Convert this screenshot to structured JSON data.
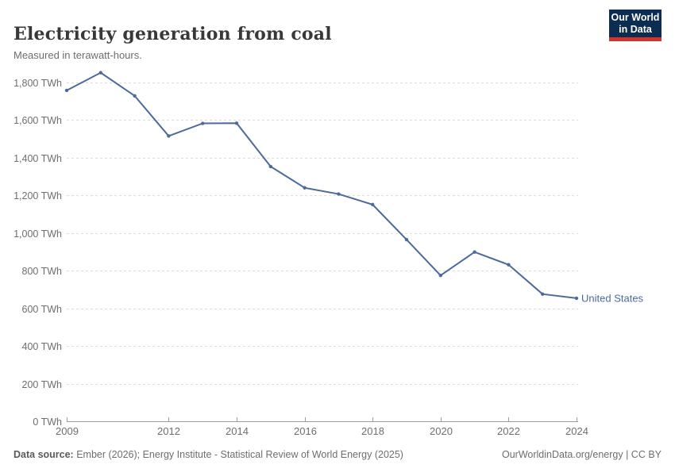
{
  "header": {
    "title": "Electricity generation from coal",
    "subtitle": "Measured in terawatt-hours."
  },
  "logo": {
    "line1": "Our World",
    "line2": "in Data",
    "bg_color": "#0a2d51",
    "bar_color": "#d0342c"
  },
  "footer": {
    "source_label": "Data source:",
    "source_text": " Ember (2026); Energy Institute - Statistical Review of World Energy (2025)",
    "credit": "OurWorldinData.org/energy | CC BY"
  },
  "chart_data": {
    "type": "line",
    "title": "Electricity generation from coal",
    "unit": "TWh",
    "x": [
      2009,
      2010,
      2011,
      2012,
      2013,
      2014,
      2015,
      2016,
      2017,
      2018,
      2019,
      2020,
      2021,
      2022,
      2023,
      2024
    ],
    "series": [
      {
        "name": "United States",
        "color": "#4C6A9C",
        "values": [
          1756,
          1850,
          1727,
          1514,
          1581,
          1582,
          1352,
          1239,
          1206,
          1150,
          964,
          774,
          898,
          831,
          675,
          653
        ]
      }
    ],
    "x_ticks": [
      2009,
      2012,
      2014,
      2016,
      2018,
      2020,
      2022,
      2024
    ],
    "y_ticks": [
      {
        "value": 0,
        "label": "0 TWh"
      },
      {
        "value": 200,
        "label": "200 TWh"
      },
      {
        "value": 400,
        "label": "400 TWh"
      },
      {
        "value": 600,
        "label": "600 TWh"
      },
      {
        "value": 800,
        "label": "800 TWh"
      },
      {
        "value": 1000,
        "label": "1,000 TWh"
      },
      {
        "value": 1200,
        "label": "1,200 TWh"
      },
      {
        "value": 1400,
        "label": "1,400 TWh"
      },
      {
        "value": 1600,
        "label": "1,600 TWh"
      },
      {
        "value": 1800,
        "label": "1,800 TWh"
      }
    ],
    "xlim": [
      2009,
      2024
    ],
    "ylim": [
      0,
      1850
    ],
    "grid": "horizontal-dashed",
    "grid_color": "#dcdcdc",
    "axis_color": "#9e9e9e",
    "tick_label_color": "#6e6e6e",
    "legend_position": "end-of-line"
  }
}
